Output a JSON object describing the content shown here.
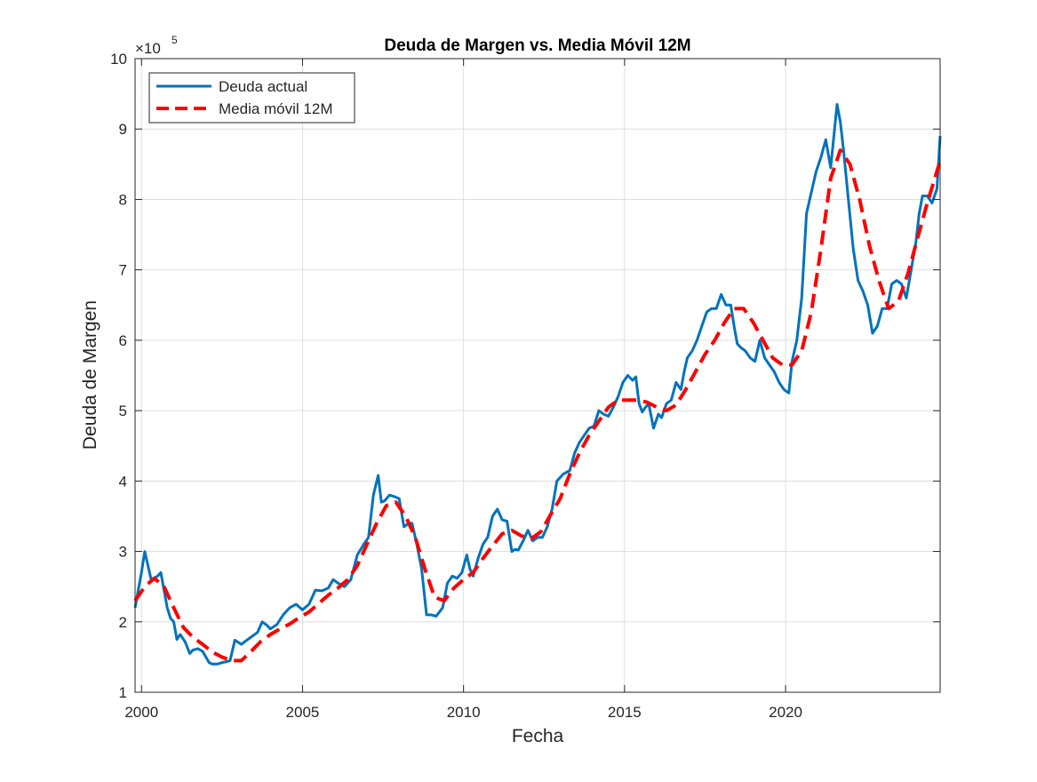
{
  "chart_data": {
    "type": "line",
    "title": "Deuda de Margen vs. Media Móvil 12M",
    "xlabel": "Fecha",
    "ylabel": "Deuda de Margen",
    "y_exponent_label": "×10^5",
    "y_exponent_base": "×10",
    "y_exponent_power": "5",
    "xlim": [
      1999.8,
      2024.8
    ],
    "ylim": [
      1,
      10
    ],
    "x_ticks": [
      2000,
      2005,
      2010,
      2015,
      2020
    ],
    "x_tick_labels": [
      "2000",
      "2005",
      "2010",
      "2015",
      "2020"
    ],
    "y_ticks": [
      1,
      2,
      3,
      4,
      5,
      6,
      7,
      8,
      9,
      10
    ],
    "y_tick_labels": [
      "1",
      "2",
      "3",
      "4",
      "5",
      "6",
      "7",
      "8",
      "9",
      "10"
    ],
    "grid": true,
    "legend_position": "top-left",
    "series": [
      {
        "name": "Deuda actual",
        "color": "#0072BD",
        "style": "solid",
        "x": [
          1999.8,
          2000.0,
          2000.1,
          2000.3,
          2000.5,
          2000.6,
          2000.8,
          2000.9,
          2001.0,
          2001.1,
          2001.2,
          2001.35,
          2001.5,
          2001.6,
          2001.75,
          2001.9,
          2002.0,
          2002.1,
          2002.2,
          2002.35,
          2002.5,
          2002.6,
          2002.75,
          2002.9,
          2003.1,
          2003.3,
          2003.45,
          2003.6,
          2003.75,
          2003.9,
          2004.0,
          2004.2,
          2004.4,
          2004.6,
          2004.8,
          2005.0,
          2005.2,
          2005.4,
          2005.6,
          2005.8,
          2005.95,
          2006.1,
          2006.3,
          2006.5,
          2006.7,
          2006.9,
          2007.05,
          2007.2,
          2007.35,
          2007.45,
          2007.55,
          2007.7,
          2007.85,
          2008.0,
          2008.15,
          2008.3,
          2008.4,
          2008.55,
          2008.7,
          2008.85,
          2009.0,
          2009.15,
          2009.35,
          2009.5,
          2009.65,
          2009.8,
          2009.95,
          2010.1,
          2010.2,
          2010.3,
          2010.45,
          2010.6,
          2010.75,
          2010.9,
          2011.05,
          2011.2,
          2011.35,
          2011.5,
          2011.6,
          2011.7,
          2011.85,
          2012.0,
          2012.15,
          2012.3,
          2012.45,
          2012.6,
          2012.75,
          2012.9,
          2013.1,
          2013.3,
          2013.45,
          2013.6,
          2013.75,
          2013.9,
          2014.05,
          2014.2,
          2014.35,
          2014.5,
          2014.65,
          2014.8,
          2014.95,
          2015.1,
          2015.25,
          2015.35,
          2015.45,
          2015.55,
          2015.65,
          2015.75,
          2015.9,
          2016.05,
          2016.15,
          2016.3,
          2016.45,
          2016.6,
          2016.75,
          2016.85,
          2016.95,
          2017.1,
          2017.25,
          2017.4,
          2017.55,
          2017.7,
          2017.85,
          2018.0,
          2018.15,
          2018.3,
          2018.4,
          2018.5,
          2018.6,
          2018.75,
          2018.9,
          2019.05,
          2019.2,
          2019.35,
          2019.5,
          2019.65,
          2019.8,
          2019.95,
          2020.1,
          2020.2,
          2020.35,
          2020.5,
          2020.65,
          2020.8,
          2020.95,
          2021.1,
          2021.25,
          2021.4,
          2021.5,
          2021.6,
          2021.7,
          2021.8,
          2021.95,
          2022.1,
          2022.25,
          2022.4,
          2022.55,
          2022.7,
          2022.85,
          2023.0,
          2023.15,
          2023.3,
          2023.45,
          2023.6,
          2023.75,
          2023.9,
          2024.05,
          2024.15,
          2024.25,
          2024.4,
          2024.55,
          2024.7,
          2024.8
        ],
        "values": [
          2.2,
          2.7,
          3.0,
          2.6,
          2.65,
          2.7,
          2.2,
          2.05,
          2.0,
          1.75,
          1.82,
          1.72,
          1.55,
          1.6,
          1.62,
          1.58,
          1.5,
          1.42,
          1.4,
          1.4,
          1.42,
          1.43,
          1.45,
          1.74,
          1.68,
          1.75,
          1.8,
          1.85,
          2.0,
          1.95,
          1.9,
          1.96,
          2.1,
          2.2,
          2.25,
          2.17,
          2.25,
          2.45,
          2.44,
          2.48,
          2.6,
          2.55,
          2.5,
          2.6,
          2.95,
          3.1,
          3.2,
          3.8,
          4.08,
          3.7,
          3.72,
          3.8,
          3.78,
          3.75,
          3.35,
          3.4,
          3.4,
          3.1,
          2.75,
          2.1,
          2.1,
          2.08,
          2.2,
          2.55,
          2.65,
          2.62,
          2.7,
          2.95,
          2.75,
          2.65,
          2.9,
          3.1,
          3.2,
          3.5,
          3.6,
          3.45,
          3.43,
          3.0,
          3.03,
          3.02,
          3.15,
          3.3,
          3.15,
          3.2,
          3.2,
          3.35,
          3.6,
          4.0,
          4.1,
          4.15,
          4.4,
          4.55,
          4.65,
          4.75,
          4.78,
          5.0,
          4.95,
          4.92,
          5.05,
          5.2,
          5.4,
          5.5,
          5.43,
          5.48,
          5.1,
          4.98,
          5.05,
          5.1,
          4.75,
          4.95,
          4.9,
          5.1,
          5.15,
          5.4,
          5.3,
          5.55,
          5.75,
          5.85,
          6.0,
          6.2,
          6.4,
          6.45,
          6.45,
          6.65,
          6.5,
          6.5,
          6.2,
          5.95,
          5.9,
          5.85,
          5.75,
          5.7,
          6.0,
          5.75,
          5.65,
          5.55,
          5.4,
          5.3,
          5.25,
          5.7,
          6.0,
          6.6,
          7.8,
          8.1,
          8.4,
          8.6,
          8.85,
          8.45,
          8.9,
          9.35,
          9.1,
          8.7,
          8.0,
          7.3,
          6.85,
          6.7,
          6.5,
          6.1,
          6.2,
          6.45,
          6.45,
          6.8,
          6.85,
          6.8,
          6.6,
          7.0,
          7.4,
          7.8,
          8.05,
          8.05,
          7.95,
          8.15,
          8.9
        ]
      },
      {
        "name": "Media móvil 12M",
        "color": "#FF0000",
        "style": "dashed",
        "x": [
          1999.8,
          2000.1,
          2000.4,
          2000.7,
          2001.0,
          2001.3,
          2001.6,
          2001.9,
          2002.2,
          2002.5,
          2002.8,
          2003.1,
          2003.4,
          2003.7,
          2004.0,
          2004.3,
          2004.6,
          2004.9,
          2005.2,
          2005.5,
          2005.8,
          2006.1,
          2006.4,
          2006.7,
          2007.0,
          2007.3,
          2007.6,
          2007.9,
          2008.2,
          2008.5,
          2008.8,
          2009.1,
          2009.4,
          2009.7,
          2010.0,
          2010.3,
          2010.6,
          2010.9,
          2011.2,
          2011.5,
          2011.8,
          2012.1,
          2012.4,
          2012.7,
          2013.0,
          2013.3,
          2013.6,
          2013.9,
          2014.2,
          2014.5,
          2014.8,
          2015.1,
          2015.4,
          2015.7,
          2016.0,
          2016.3,
          2016.6,
          2016.9,
          2017.2,
          2017.5,
          2017.8,
          2018.1,
          2018.4,
          2018.7,
          2019.0,
          2019.3,
          2019.6,
          2019.9,
          2020.2,
          2020.5,
          2020.8,
          2021.1,
          2021.4,
          2021.7,
          2022.0,
          2022.3,
          2022.6,
          2022.9,
          2023.2,
          2023.5,
          2023.8,
          2024.1,
          2024.4,
          2024.8
        ],
        "values": [
          2.3,
          2.5,
          2.62,
          2.5,
          2.2,
          1.92,
          1.78,
          1.68,
          1.57,
          1.5,
          1.45,
          1.45,
          1.58,
          1.72,
          1.82,
          1.9,
          1.97,
          2.06,
          2.14,
          2.26,
          2.38,
          2.48,
          2.6,
          2.8,
          3.1,
          3.4,
          3.65,
          3.7,
          3.5,
          3.2,
          2.75,
          2.35,
          2.3,
          2.48,
          2.6,
          2.7,
          2.9,
          3.08,
          3.25,
          3.3,
          3.22,
          3.18,
          3.28,
          3.52,
          3.75,
          4.1,
          4.4,
          4.65,
          4.85,
          5.05,
          5.15,
          5.15,
          5.15,
          5.12,
          5.05,
          5.0,
          5.08,
          5.3,
          5.55,
          5.8,
          6.0,
          6.25,
          6.45,
          6.45,
          6.25,
          6.0,
          5.75,
          5.65,
          5.65,
          5.85,
          6.4,
          7.3,
          8.3,
          8.7,
          8.5,
          8.0,
          7.35,
          6.85,
          6.45,
          6.55,
          6.95,
          7.45,
          7.95,
          8.55
        ]
      }
    ]
  }
}
